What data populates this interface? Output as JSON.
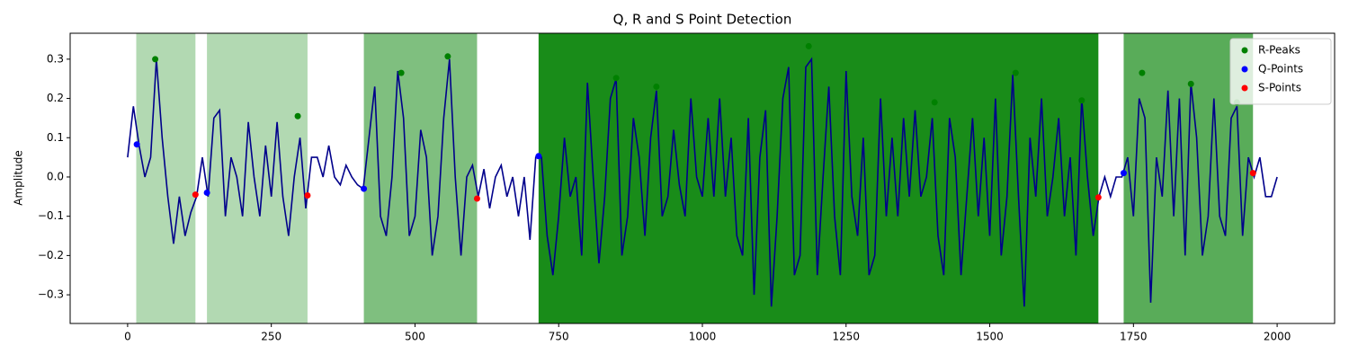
{
  "chart_data": {
    "type": "line",
    "title": "Q, R and S Point Detection",
    "ylabel": "Amplitude",
    "xlim": [
      -100,
      2100
    ],
    "ylim": [
      -0.373,
      0.366
    ],
    "xticks": [
      0,
      250,
      500,
      750,
      1000,
      1250,
      1500,
      1750,
      2000
    ],
    "yticks": [
      {
        "value": -0.3,
        "label": "−0.3"
      },
      {
        "value": -0.2,
        "label": "−0.2"
      },
      {
        "value": -0.1,
        "label": "−0.1"
      },
      {
        "value": 0,
        "label": "0.0"
      },
      0.1,
      0.2,
      0.3
    ],
    "legend": "upper right",
    "region_color": "green",
    "regions": [
      {
        "start": 15,
        "end": 118,
        "alpha": 0.3
      },
      {
        "start": 138,
        "end": 313,
        "alpha": 0.3
      },
      {
        "start": 411,
        "end": 608,
        "alpha": 0.5
      },
      {
        "start": 715,
        "end": 1689,
        "alpha": 0.9
      },
      {
        "start": 1733,
        "end": 1958,
        "alpha": 0.65
      }
    ],
    "signal": {
      "color": "#00008b",
      "x": [
        0,
        10,
        20,
        30,
        40,
        50,
        60,
        70,
        80,
        90,
        100,
        110,
        120,
        130,
        140,
        150,
        160,
        170,
        180,
        190,
        200,
        210,
        220,
        230,
        240,
        250,
        260,
        270,
        280,
        290,
        300,
        310,
        320,
        330,
        340,
        350,
        360,
        370,
        380,
        390,
        400,
        410,
        420,
        430,
        440,
        450,
        460,
        470,
        480,
        490,
        500,
        510,
        520,
        530,
        540,
        550,
        560,
        570,
        580,
        590,
        600,
        610,
        620,
        630,
        640,
        650,
        660,
        670,
        680,
        690,
        700,
        710,
        720,
        730,
        740,
        750,
        760,
        770,
        780,
        790,
        800,
        810,
        820,
        830,
        840,
        850,
        860,
        870,
        880,
        890,
        900,
        910,
        920,
        930,
        940,
        950,
        960,
        970,
        980,
        990,
        1000,
        1010,
        1020,
        1030,
        1040,
        1050,
        1060,
        1070,
        1080,
        1090,
        1100,
        1110,
        1120,
        1130,
        1140,
        1150,
        1160,
        1170,
        1180,
        1190,
        1200,
        1210,
        1220,
        1230,
        1240,
        1250,
        1260,
        1270,
        1280,
        1290,
        1300,
        1310,
        1320,
        1330,
        1340,
        1350,
        1360,
        1370,
        1380,
        1390,
        1400,
        1410,
        1420,
        1430,
        1440,
        1450,
        1460,
        1470,
        1480,
        1490,
        1500,
        1510,
        1520,
        1530,
        1540,
        1550,
        1560,
        1570,
        1580,
        1590,
        1600,
        1610,
        1620,
        1630,
        1640,
        1650,
        1660,
        1670,
        1680,
        1690,
        1700,
        1710,
        1720,
        1730,
        1740,
        1750,
        1760,
        1770,
        1780,
        1790,
        1800,
        1810,
        1820,
        1830,
        1840,
        1850,
        1860,
        1870,
        1880,
        1890,
        1900,
        1910,
        1920,
        1930,
        1940,
        1950,
        1960,
        1970,
        1980,
        1990,
        2000
      ],
      "values": [
        0.05,
        0.18,
        0.08,
        0.0,
        0.05,
        0.3,
        0.1,
        -0.05,
        -0.17,
        -0.05,
        -0.15,
        -0.09,
        -0.05,
        0.05,
        -0.05,
        0.15,
        0.17,
        -0.1,
        0.05,
        0.0,
        -0.1,
        0.14,
        0.0,
        -0.1,
        0.08,
        -0.05,
        0.14,
        -0.05,
        -0.15,
        0.0,
        0.1,
        -0.08,
        0.05,
        0.05,
        0.0,
        0.08,
        0.0,
        -0.02,
        0.03,
        0.0,
        -0.02,
        -0.03,
        0.1,
        0.23,
        -0.1,
        -0.15,
        0.0,
        0.27,
        0.15,
        -0.15,
        -0.1,
        0.12,
        0.05,
        -0.2,
        -0.1,
        0.15,
        0.3,
        0.0,
        -0.2,
        0.0,
        0.03,
        -0.05,
        0.02,
        -0.08,
        0.0,
        0.03,
        -0.05,
        0.0,
        -0.1,
        0.0,
        -0.16,
        0.05,
        0.05,
        -0.15,
        -0.25,
        -0.1,
        0.1,
        -0.05,
        0.0,
        -0.2,
        0.24,
        0.0,
        -0.22,
        -0.05,
        0.2,
        0.25,
        -0.2,
        -0.1,
        0.15,
        0.05,
        -0.15,
        0.1,
        0.22,
        -0.1,
        -0.05,
        0.12,
        -0.02,
        -0.1,
        0.2,
        0.0,
        -0.05,
        0.15,
        -0.05,
        0.2,
        -0.05,
        0.1,
        -0.15,
        -0.2,
        0.15,
        -0.3,
        0.05,
        0.17,
        -0.33,
        -0.1,
        0.2,
        0.28,
        -0.25,
        -0.2,
        0.28,
        0.3,
        -0.25,
        0.0,
        0.23,
        -0.1,
        -0.25,
        0.27,
        -0.05,
        -0.15,
        0.1,
        -0.25,
        -0.2,
        0.2,
        -0.1,
        0.1,
        -0.1,
        0.15,
        -0.05,
        0.17,
        -0.05,
        0.0,
        0.15,
        -0.15,
        -0.25,
        0.15,
        0.05,
        -0.25,
        -0.05,
        0.15,
        -0.1,
        0.1,
        -0.15,
        0.2,
        -0.2,
        -0.05,
        0.26,
        -0.05,
        -0.33,
        0.1,
        -0.05,
        0.2,
        -0.1,
        0.0,
        0.15,
        -0.1,
        0.05,
        -0.2,
        0.2,
        0.0,
        -0.15,
        -0.05,
        0.0,
        -0.05,
        0.0,
        0.0,
        0.05,
        -0.1,
        0.2,
        0.15,
        -0.32,
        0.05,
        -0.05,
        0.22,
        -0.1,
        0.2,
        -0.2,
        0.24,
        0.1,
        -0.2,
        -0.1,
        0.2,
        -0.1,
        -0.15,
        0.15,
        0.18,
        -0.15,
        0.05,
        0.0,
        0.05,
        -0.05,
        -0.05,
        0.0
      ]
    },
    "series": [
      {
        "name": "R-Peaks",
        "color": "green",
        "x": [
          48,
          296,
          476,
          557,
          850,
          920,
          1185,
          1404,
          1545,
          1660,
          1765,
          1850,
          1930
        ],
        "values": [
          0.3,
          0.155,
          0.265,
          0.307,
          0.252,
          0.23,
          0.333,
          0.19,
          0.265,
          0.195,
          0.265,
          0.237,
          0.19
        ]
      },
      {
        "name": "Q-Points",
        "color": "blue",
        "x": [
          16,
          138,
          411,
          715,
          1733
        ],
        "values": [
          0.083,
          -0.04,
          -0.03,
          0.053,
          0.01
        ]
      },
      {
        "name": "S-Points",
        "color": "red",
        "x": [
          118,
          313,
          608,
          1689,
          1958
        ],
        "values": [
          -0.045,
          -0.047,
          -0.055,
          -0.052,
          0.01
        ]
      }
    ]
  }
}
